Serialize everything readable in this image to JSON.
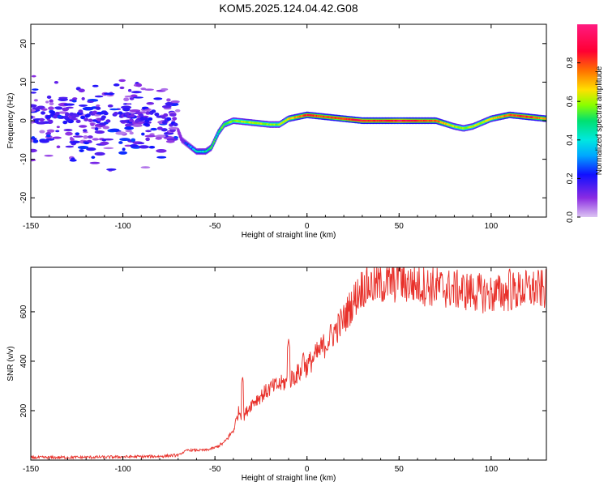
{
  "title": "KOM5.2025.124.04.42.G08",
  "chart_data": [
    {
      "type": "heatmap",
      "xlabel": "Height of straight line (km)",
      "ylabel": "Frequency (Hz)",
      "xlim": [
        -150,
        130
      ],
      "ylim": [
        -25,
        25
      ],
      "x_ticks": [
        -150,
        -100,
        -50,
        0,
        50,
        100
      ],
      "y_ticks": [
        20,
        10,
        0,
        -10,
        -20
      ],
      "colorbar": {
        "label": "Normalized spectral amplitude",
        "range": [
          0,
          1
        ],
        "ticks": [
          0.0,
          0.2,
          0.4,
          0.6,
          0.8
        ],
        "colors": [
          "#dcc4f2",
          "#8a2be2",
          "#1010ff",
          "#00d8ff",
          "#00e070",
          "#88ff00",
          "#ffe000",
          "#ff7000",
          "#ff0033",
          "#ff1a80"
        ]
      },
      "ridge": {
        "x": [
          -150,
          -120,
          -100,
          -80,
          -72,
          -68,
          -60,
          -55,
          -52,
          -48,
          -45,
          -40,
          -30,
          -20,
          -15,
          -10,
          -5,
          0,
          10,
          20,
          30,
          40,
          50,
          60,
          70,
          80,
          85,
          90,
          95,
          100,
          110,
          120,
          130
        ],
        "freq": [
          1,
          1,
          1,
          1,
          0,
          -5,
          -8,
          -8,
          -7,
          -3,
          -1,
          0,
          -0.5,
          -1,
          -1,
          0.5,
          1,
          1.5,
          1,
          0.5,
          0,
          0,
          0,
          0,
          0,
          -1.5,
          -2,
          -1.5,
          -0.5,
          0.5,
          1.5,
          1,
          0.5
        ],
        "amplitude": [
          0.15,
          0.15,
          0.15,
          0.15,
          0.15,
          0.2,
          0.35,
          0.4,
          0.45,
          0.45,
          0.5,
          0.55,
          0.6,
          0.55,
          0.55,
          0.65,
          0.75,
          0.85,
          0.8,
          0.85,
          0.9,
          0.85,
          0.95,
          0.85,
          0.8,
          0.6,
          0.55,
          0.6,
          0.6,
          0.65,
          0.8,
          0.85,
          0.7
        ]
      },
      "scatter_region": {
        "x": [
          -150,
          -70
        ],
        "freq": [
          -15,
          15
        ],
        "amplitude": [
          0.05,
          0.25
        ]
      }
    },
    {
      "type": "line",
      "xlabel": "Height of straight line (km)",
      "ylabel": "SNR (v/v)",
      "xlim": [
        -150,
        130
      ],
      "ylim": [
        0,
        780
      ],
      "x_ticks": [
        -150,
        -100,
        -50,
        0,
        50,
        100
      ],
      "y_ticks": [
        200,
        400,
        600
      ],
      "line_color": "#e8302a",
      "envelope": {
        "x": [
          -150,
          -110,
          -80,
          -70,
          -65,
          -60,
          -55,
          -50,
          -45,
          -40,
          -37,
          -35,
          -30,
          -20,
          -10,
          0,
          10,
          20,
          25,
          30,
          40,
          50,
          60,
          70,
          80,
          90,
          100,
          110,
          120,
          130
        ],
        "snr": [
          10,
          12,
          15,
          20,
          40,
          40,
          40,
          50,
          70,
          120,
          200,
          170,
          230,
          290,
          320,
          380,
          470,
          570,
          640,
          700,
          710,
          720,
          710,
          700,
          690,
          680,
          670,
          680,
          690,
          690
        ]
      },
      "spikes": [
        {
          "x": -35,
          "snr": 340
        },
        {
          "x": -10,
          "snr": 490
        },
        {
          "x": -2,
          "snr": 440
        },
        {
          "x": 50,
          "snr": 790
        },
        {
          "x": 110,
          "snr": 780
        }
      ]
    }
  ]
}
